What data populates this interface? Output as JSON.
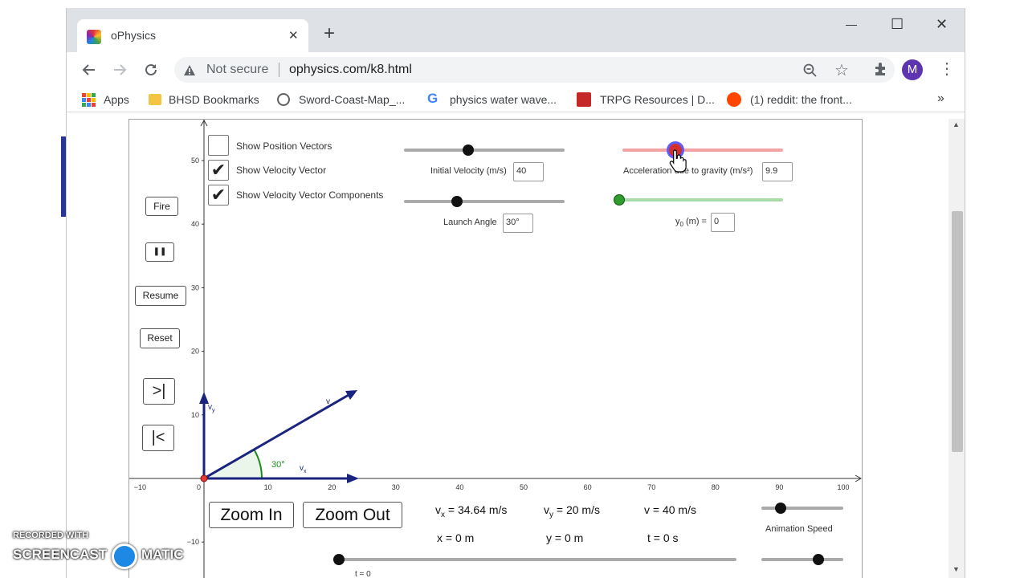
{
  "browser": {
    "tab_title": "oPhysics",
    "new_tab": "+",
    "close_tab": "✕",
    "security": "Not secure",
    "url": "ophysics.com/k8.html",
    "profile_initial": "M",
    "bookmarks": [
      "Apps",
      "BHSD Bookmarks",
      "Sword-Coast-Map_...",
      "physics water wave...",
      "TRPG Resources | D...",
      "(1) reddit: the front..."
    ],
    "overflow": "»",
    "window_controls": [
      "—",
      "☐",
      "✕"
    ]
  },
  "applet": {
    "checkboxes": [
      {
        "label": "Show Position Vectors",
        "checked": false
      },
      {
        "label": "Show Velocity Vector",
        "checked": true
      },
      {
        "label": "Show Velocity Vector Components",
        "checked": true
      }
    ],
    "buttons": {
      "fire": "Fire",
      "pause": "❚❚",
      "resume": "Resume",
      "reset": "Reset",
      "step_forward": ">|",
      "step_back": "|<",
      "zoom_in": "Zoom In",
      "zoom_out": "Zoom Out"
    },
    "sliders": {
      "initial_velocity": {
        "label": "Initial Velocity (m/s)",
        "value": "40",
        "fraction": 0.4
      },
      "launch_angle": {
        "label": "Launch Angle",
        "value": "30°",
        "fraction": 0.33
      },
      "gravity": {
        "label": "Acceleration due to gravity (m/s²)",
        "value": "9.9",
        "fraction": 0.33
      },
      "y0": {
        "label_main": "y",
        "label_sub": "0",
        "label_rest": " (m) =",
        "value": "0",
        "fraction": 0.0
      },
      "animation_speed": {
        "label": "Animation Speed",
        "fraction": 0.24
      },
      "time": {
        "label": "t = 0",
        "fraction": 0.0
      }
    },
    "readouts": {
      "vx": {
        "main": "v",
        "sub": "x",
        "rest": " = 34.64 m/s"
      },
      "vy": {
        "main": "v",
        "sub": "y",
        "rest": " = 20 m/s"
      },
      "v": "v = 40 m/s",
      "x": "x = 0 m",
      "y": "y = 0 m",
      "t": "t = 0 s"
    },
    "graph": {
      "x_ticks": [
        "−10",
        "0",
        "10",
        "20",
        "30",
        "40",
        "50",
        "60",
        "70",
        "80",
        "90",
        "100"
      ],
      "y_ticks": [
        "50",
        "40",
        "30",
        "20",
        "10",
        "−10"
      ],
      "angle_label": "30°",
      "vector_labels": {
        "v": "v",
        "vx_main": "v",
        "vx_sub": "x",
        "vy_main": "v",
        "vy_sub": "y"
      },
      "colors": {
        "vector": "#1a237e",
        "angle": "#1b8a1b",
        "origin": "#e53935",
        "gravity_knob": "#d32f2f",
        "y0_knob": "#2e9d2e"
      }
    }
  },
  "watermark": {
    "line1": "RECORDED WITH",
    "line2a": "SCREENCAST",
    "line2b": "MATIC"
  }
}
